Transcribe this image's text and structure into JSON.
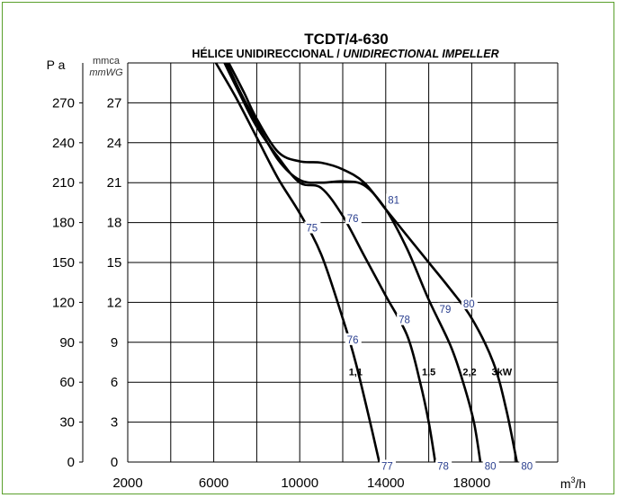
{
  "colors": {
    "frame": "#5aa02c",
    "curve": "#000000",
    "grid": "#000000",
    "efficiency_label": "#2a3f8f"
  },
  "chart_data": {
    "type": "line",
    "title": "TCDT/4-630",
    "subtitle": {
      "regular": "HÉLICE UNIDIRECCIONAL / ",
      "italic": "UNIDIRECTIONAL IMPELLER"
    },
    "xlabel": {
      "base": "m",
      "sup": "3",
      "rest": "/h"
    },
    "ylabel_left": "P a",
    "ylabel_right": [
      "mmca",
      "mmWG"
    ],
    "xlim": [
      2000,
      22000
    ],
    "ylim": [
      0,
      300
    ],
    "x_ticks": [
      "2000",
      "6000",
      "10000",
      "14000",
      "18000"
    ],
    "x_tick_values": [
      2000,
      6000,
      10000,
      14000,
      18000
    ],
    "y_ticks_pa": [
      "0",
      "30",
      "60",
      "90",
      "120",
      "150",
      "180",
      "210",
      "240",
      "270"
    ],
    "y_ticks_mmca": [
      "0",
      "3",
      "6",
      "9",
      "12",
      "15",
      "18",
      "21",
      "24",
      "27"
    ],
    "y_tick_values": [
      0,
      30,
      60,
      90,
      120,
      150,
      180,
      210,
      240,
      270
    ],
    "grid": true,
    "series": [
      {
        "name": "1,1",
        "label_at": [
          12600,
          68
        ],
        "points": [
          [
            6100,
            300
          ],
          [
            7000,
            275
          ],
          [
            8000,
            244
          ],
          [
            9000,
            213
          ],
          [
            10000,
            187
          ],
          [
            11000,
            156
          ],
          [
            12000,
            108
          ],
          [
            12600,
            75
          ],
          [
            13200,
            35
          ],
          [
            13700,
            0
          ]
        ]
      },
      {
        "name": "1,5",
        "label_at": [
          16000,
          68
        ],
        "points": [
          [
            6500,
            300
          ],
          [
            7200,
            277
          ],
          [
            8000,
            252
          ],
          [
            9000,
            229
          ],
          [
            10000,
            210
          ],
          [
            11000,
            206
          ],
          [
            12000,
            185
          ],
          [
            13000,
            155
          ],
          [
            14000,
            125
          ],
          [
            15000,
            95
          ],
          [
            15600,
            60
          ],
          [
            16000,
            30
          ],
          [
            16300,
            0
          ]
        ]
      },
      {
        "name": "2,2",
        "label_at": [
          17900,
          68
        ],
        "points": [
          [
            6600,
            300
          ],
          [
            7300,
            276
          ],
          [
            8000,
            255
          ],
          [
            9000,
            227
          ],
          [
            10000,
            212
          ],
          [
            11000,
            210
          ],
          [
            12000,
            211
          ],
          [
            13000,
            208
          ],
          [
            14000,
            190
          ],
          [
            15000,
            160
          ],
          [
            16000,
            122
          ],
          [
            17000,
            88
          ],
          [
            17600,
            60
          ],
          [
            18100,
            30
          ],
          [
            18400,
            0
          ]
        ]
      },
      {
        "name": "3kW",
        "label_at": [
          19400,
          68
        ],
        "points": [
          [
            6700,
            300
          ],
          [
            7400,
            278
          ],
          [
            8000,
            258
          ],
          [
            9000,
            233
          ],
          [
            10000,
            226
          ],
          [
            11000,
            225
          ],
          [
            12000,
            220
          ],
          [
            13000,
            210
          ],
          [
            14000,
            190
          ],
          [
            15000,
            170
          ],
          [
            16000,
            150
          ],
          [
            17000,
            130
          ],
          [
            18000,
            108
          ],
          [
            19000,
            75
          ],
          [
            19600,
            40
          ],
          [
            20100,
            0
          ]
        ]
      }
    ],
    "efficiency_labels": [
      {
        "text": "75",
        "x": 10300,
        "y": 176
      },
      {
        "text": "76",
        "x": 12200,
        "y": 183
      },
      {
        "text": "81",
        "x": 14100,
        "y": 197
      },
      {
        "text": "78",
        "x": 14600,
        "y": 107
      },
      {
        "text": "79",
        "x": 16500,
        "y": 115
      },
      {
        "text": "80",
        "x": 17600,
        "y": 119
      },
      {
        "text": "76",
        "x": 12200,
        "y": 92
      },
      {
        "text": "77",
        "x": 13800,
        "y": -3
      },
      {
        "text": "78",
        "x": 16400,
        "y": -3
      },
      {
        "text": "80",
        "x": 18600,
        "y": -3
      },
      {
        "text": "80",
        "x": 20300,
        "y": -3
      }
    ]
  }
}
